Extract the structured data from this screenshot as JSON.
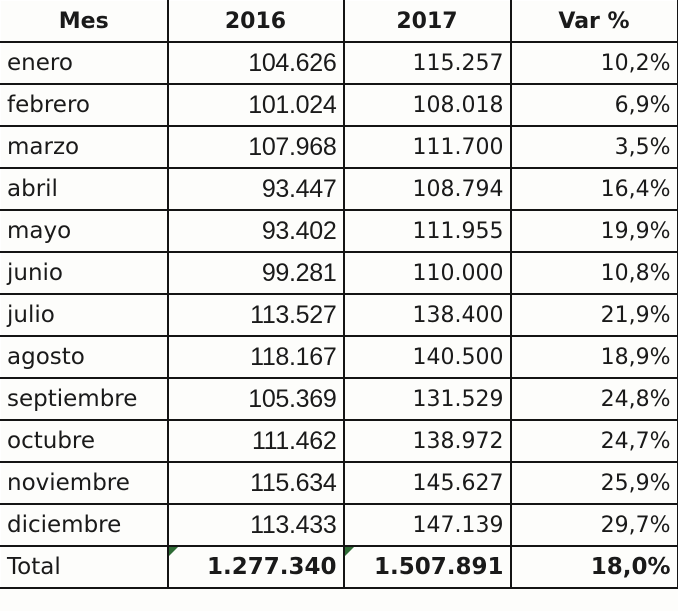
{
  "table": {
    "headers": [
      "Mes",
      "2016",
      "2017",
      "Var %"
    ],
    "rows": [
      {
        "mes": "enero",
        "y2016": "104.626",
        "y2017": "115.257",
        "var": "10,2%"
      },
      {
        "mes": "febrero",
        "y2016": "101.024",
        "y2017": "108.018",
        "var": "6,9%"
      },
      {
        "mes": "marzo",
        "y2016": "107.968",
        "y2017": "111.700",
        "var": "3,5%"
      },
      {
        "mes": "abril",
        "y2016": "93.447",
        "y2017": "108.794",
        "var": "16,4%"
      },
      {
        "mes": "mayo",
        "y2016": "93.402",
        "y2017": "111.955",
        "var": "19,9%"
      },
      {
        "mes": "junio",
        "y2016": "99.281",
        "y2017": "110.000",
        "var": "10,8%"
      },
      {
        "mes": "julio",
        "y2016": "113.527",
        "y2017": "138.400",
        "var": "21,9%"
      },
      {
        "mes": "agosto",
        "y2016": "118.167",
        "y2017": "140.500",
        "var": "18,9%"
      },
      {
        "mes": "septiembre",
        "y2016": "105.369",
        "y2017": "131.529",
        "var": "24,8%"
      },
      {
        "mes": "octubre",
        "y2016": "111.462",
        "y2017": "138.972",
        "var": "24,7%"
      },
      {
        "mes": "noviembre",
        "y2016": "115.634",
        "y2017": "145.627",
        "var": "25,9%"
      },
      {
        "mes": "diciembre",
        "y2016": "113.433",
        "y2017": "147.139",
        "var": "29,7%"
      }
    ],
    "total": {
      "mes": "Total",
      "y2016": "1.277.340",
      "y2017": "1.507.891",
      "var": "18,0%"
    }
  },
  "colors": {
    "grid": "#141414",
    "text": "#1a1a1a",
    "formula_indicator": "#2e6b35",
    "background": "#fdfdfb"
  }
}
